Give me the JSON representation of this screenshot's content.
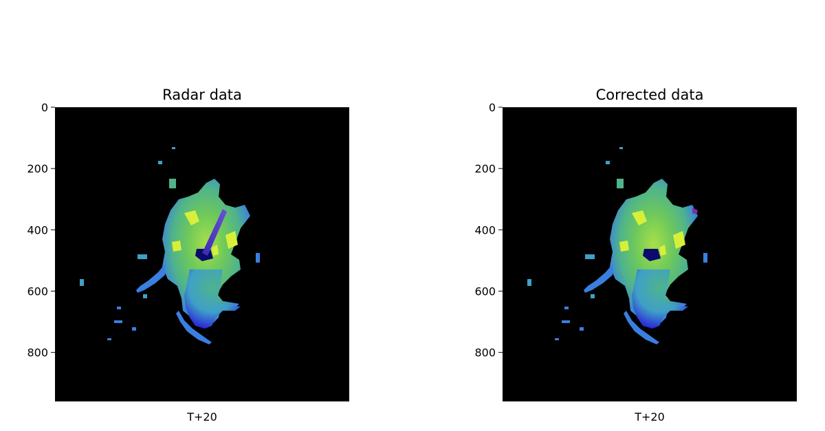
{
  "chart_data": [
    {
      "type": "heatmap",
      "title": "Radar data",
      "xlabel": "T+20",
      "ylabel": "",
      "ylim": [
        960,
        0
      ],
      "yticks": [
        0,
        200,
        400,
        600,
        800
      ],
      "background_color": "#000000",
      "colormap": [
        "#0b0b6e",
        "#2b2bd6",
        "#3a7fe0",
        "#3fa0c8",
        "#4fb38c",
        "#6fc95a",
        "#a8e04a",
        "#e6f23a"
      ],
      "has_beam_artifact": true
    },
    {
      "type": "heatmap",
      "title": "Corrected data",
      "xlabel": "T+20",
      "ylabel": "",
      "ylim": [
        960,
        0
      ],
      "yticks": [
        0,
        200,
        400,
        600,
        800
      ],
      "background_color": "#000000",
      "colormap": [
        "#0b0b6e",
        "#2b2bd6",
        "#3a7fe0",
        "#3fa0c8",
        "#4fb38c",
        "#6fc95a",
        "#a8e04a",
        "#e6f23a"
      ],
      "has_beam_artifact": false
    }
  ]
}
